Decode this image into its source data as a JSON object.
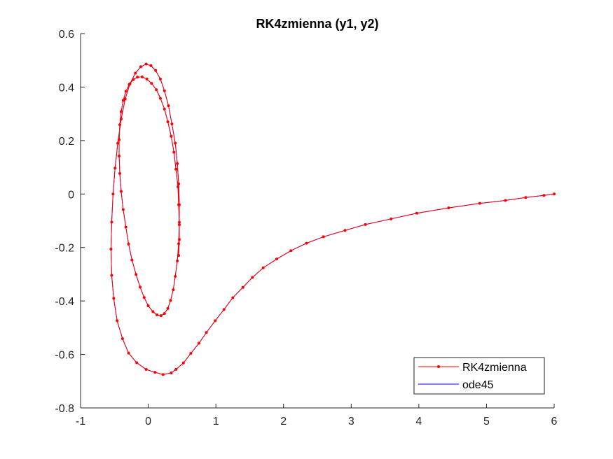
{
  "chart_data": {
    "type": "line",
    "title": "RK4zmienna (y1, y2)",
    "xlabel": "",
    "ylabel": "",
    "xlim": [
      -1,
      6
    ],
    "ylim": [
      -0.8,
      0.6
    ],
    "xticks": [
      -1,
      0,
      1,
      2,
      3,
      4,
      5,
      6
    ],
    "yticks": [
      -0.8,
      -0.6,
      -0.4,
      -0.2,
      0,
      0.2,
      0.4,
      0.6
    ],
    "xtick_labels": [
      "-1",
      "0",
      "1",
      "2",
      "3",
      "4",
      "5",
      "6"
    ],
    "ytick_labels": [
      "-0.8",
      "-0.6",
      "-0.4",
      "-0.2",
      "0",
      "0.2",
      "0.4",
      "0.6"
    ],
    "grid": false,
    "legend_position": "bottom-right",
    "series": [
      {
        "name": "RK4zmienna",
        "color": "#ff0000",
        "marker": "dot",
        "x": [
          6.0,
          5.85,
          5.58,
          5.28,
          4.9,
          4.44,
          3.97,
          3.59,
          3.21,
          2.91,
          2.59,
          2.34,
          2.11,
          1.9,
          1.7,
          1.54,
          1.4,
          1.25,
          1.12,
          0.99,
          0.86,
          0.75,
          0.63,
          0.52,
          0.41,
          0.34,
          0.22,
          0.1,
          -0.03,
          -0.17,
          -0.29,
          -0.38,
          -0.46,
          -0.51,
          -0.54,
          -0.55,
          -0.54,
          -0.52,
          -0.49,
          -0.45,
          -0.4,
          -0.34,
          -0.27,
          -0.19,
          -0.11,
          -0.03,
          0.04,
          0.11,
          0.18,
          0.24,
          0.3,
          0.35,
          0.4,
          0.43,
          0.45,
          0.46,
          0.46,
          0.45,
          0.43,
          0.4,
          0.37,
          0.33,
          0.29,
          0.24,
          0.19,
          0.13,
          0.07,
          0.0,
          -0.06,
          -0.12,
          -0.18,
          -0.24,
          -0.29,
          -0.33,
          -0.37,
          -0.4,
          -0.42,
          -0.43,
          -0.43,
          -0.42,
          -0.4,
          -0.37,
          -0.33,
          -0.28,
          -0.22,
          -0.16,
          -0.09,
          -0.02,
          0.05,
          0.12,
          0.18,
          0.24,
          0.29,
          0.34,
          0.38,
          0.41,
          0.44,
          0.45,
          0.46,
          0.46,
          0.45
        ],
        "y": [
          0.0,
          -0.005,
          -0.013,
          -0.024,
          -0.035,
          -0.052,
          -0.072,
          -0.093,
          -0.114,
          -0.136,
          -0.16,
          -0.184,
          -0.212,
          -0.243,
          -0.276,
          -0.312,
          -0.349,
          -0.388,
          -0.432,
          -0.474,
          -0.518,
          -0.558,
          -0.596,
          -0.632,
          -0.656,
          -0.669,
          -0.675,
          -0.667,
          -0.656,
          -0.631,
          -0.595,
          -0.541,
          -0.474,
          -0.39,
          -0.304,
          -0.206,
          -0.105,
          0.0,
          0.097,
          0.19,
          0.281,
          0.356,
          0.412,
          0.452,
          0.476,
          0.486,
          0.48,
          0.462,
          0.43,
          0.386,
          0.33,
          0.262,
          0.19,
          0.114,
          0.038,
          -0.04,
          -0.115,
          -0.186,
          -0.25,
          -0.308,
          -0.358,
          -0.398,
          -0.428,
          -0.447,
          -0.455,
          -0.452,
          -0.44,
          -0.418,
          -0.387,
          -0.348,
          -0.301,
          -0.247,
          -0.187,
          -0.124,
          -0.058,
          0.01,
          0.077,
          0.142,
          0.203,
          0.259,
          0.308,
          0.35,
          0.384,
          0.41,
          0.428,
          0.437,
          0.438,
          0.43,
          0.414,
          0.39,
          0.358,
          0.318,
          0.27,
          0.216,
          0.156,
          0.093,
          0.027,
          -0.04,
          -0.106,
          -0.17,
          -0.23
        ]
      },
      {
        "name": "ode45",
        "color": "#0000ff",
        "marker": "none",
        "x": [
          6.0,
          5.85,
          5.58,
          5.28,
          4.9,
          4.44,
          3.97,
          3.59,
          3.21,
          2.91,
          2.59,
          2.34,
          2.11,
          1.9,
          1.7,
          1.54,
          1.4,
          1.25,
          1.12,
          0.99,
          0.86,
          0.75,
          0.63,
          0.52,
          0.41,
          0.34,
          0.22,
          0.1,
          -0.03,
          -0.17,
          -0.29,
          -0.38,
          -0.46,
          -0.51,
          -0.54,
          -0.55,
          -0.54,
          -0.52,
          -0.49,
          -0.45,
          -0.4,
          -0.34,
          -0.27,
          -0.19,
          -0.11,
          -0.03,
          0.04,
          0.11,
          0.18,
          0.24,
          0.3,
          0.35,
          0.4,
          0.43,
          0.45,
          0.46,
          0.46,
          0.45,
          0.43,
          0.4,
          0.37,
          0.33,
          0.29,
          0.24,
          0.19,
          0.13,
          0.07,
          0.0,
          -0.06,
          -0.12,
          -0.18,
          -0.24,
          -0.29,
          -0.33,
          -0.37,
          -0.4,
          -0.42,
          -0.43,
          -0.43,
          -0.42,
          -0.4,
          -0.37,
          -0.33,
          -0.28,
          -0.22,
          -0.16,
          -0.09,
          -0.02,
          0.05,
          0.12,
          0.18,
          0.24,
          0.29,
          0.34,
          0.38,
          0.41,
          0.44,
          0.45,
          0.46,
          0.46,
          0.45
        ],
        "y": [
          0.0,
          -0.005,
          -0.013,
          -0.024,
          -0.035,
          -0.052,
          -0.072,
          -0.093,
          -0.114,
          -0.136,
          -0.16,
          -0.184,
          -0.212,
          -0.243,
          -0.276,
          -0.312,
          -0.349,
          -0.388,
          -0.432,
          -0.474,
          -0.518,
          -0.558,
          -0.596,
          -0.632,
          -0.656,
          -0.669,
          -0.675,
          -0.667,
          -0.656,
          -0.631,
          -0.595,
          -0.541,
          -0.474,
          -0.39,
          -0.304,
          -0.206,
          -0.105,
          0.0,
          0.097,
          0.19,
          0.281,
          0.356,
          0.412,
          0.452,
          0.476,
          0.486,
          0.48,
          0.462,
          0.43,
          0.386,
          0.33,
          0.262,
          0.19,
          0.114,
          0.038,
          -0.04,
          -0.115,
          -0.186,
          -0.25,
          -0.308,
          -0.358,
          -0.398,
          -0.428,
          -0.447,
          -0.455,
          -0.452,
          -0.44,
          -0.418,
          -0.387,
          -0.348,
          -0.301,
          -0.247,
          -0.187,
          -0.124,
          -0.058,
          0.01,
          0.077,
          0.142,
          0.203,
          0.259,
          0.308,
          0.35,
          0.384,
          0.41,
          0.428,
          0.437,
          0.438,
          0.43,
          0.414,
          0.39,
          0.358,
          0.318,
          0.27,
          0.216,
          0.156,
          0.093,
          0.027,
          -0.04,
          -0.106,
          -0.17,
          -0.23
        ]
      }
    ]
  }
}
